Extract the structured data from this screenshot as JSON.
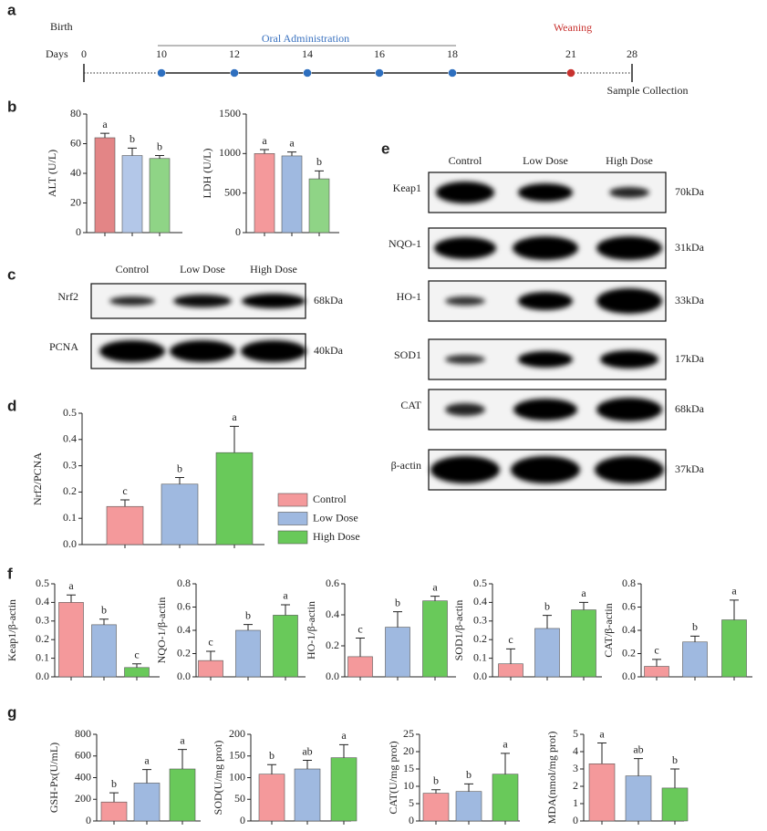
{
  "panels": {
    "a": "a",
    "b": "b",
    "c": "c",
    "d": "d",
    "e": "e",
    "f": "f",
    "g": "g"
  },
  "timeline": {
    "birth": "Birth",
    "days_label": "Days",
    "days": [
      0,
      10,
      12,
      14,
      16,
      18,
      21,
      28
    ],
    "administration": "Oral  Administration",
    "weaning": "Weaning",
    "collection": "Sample Collection"
  },
  "blot_c": {
    "lanes": [
      "Control",
      "Low Dose",
      "High Dose"
    ],
    "rows": [
      {
        "protein": "Nrf2",
        "size": "68kDa"
      },
      {
        "protein": "PCNA",
        "size": "40kDa"
      }
    ]
  },
  "blot_e": {
    "lanes": [
      "Control",
      "Low Dose",
      "High Dose"
    ],
    "rows": [
      {
        "protein": "Keap1",
        "size": "70kDa"
      },
      {
        "protein": "NQO-1",
        "size": "31kDa"
      },
      {
        "protein": "HO-1",
        "size": "33kDa"
      },
      {
        "protein": "SOD1",
        "size": "17kDa"
      },
      {
        "protein": "CAT",
        "size": "68kDa"
      },
      {
        "protein": "β-actin",
        "size": "37kDa"
      }
    ]
  },
  "chart_data": [
    {
      "type": "bar",
      "ylabel": "ALT (U/L)",
      "values": [
        64,
        52,
        50
      ],
      "errors": [
        3,
        5,
        2
      ],
      "annotations": [
        "a",
        "b",
        "b"
      ],
      "colors": [
        "#e38586",
        "#b3c7e8",
        "#8fd486"
      ],
      "ylim": [
        0,
        80
      ],
      "yticks": [
        0,
        20,
        40,
        60,
        80
      ]
    },
    {
      "type": "bar",
      "ylabel": "LDH (U/L)",
      "values": [
        1000,
        970,
        680
      ],
      "errors": [
        50,
        50,
        100
      ],
      "annotations": [
        "a",
        "a",
        "b"
      ],
      "colors": [
        "#f4999b",
        "#9fb9e0",
        "#8fd486"
      ],
      "ylim": [
        0,
        1500
      ],
      "yticks": [
        0,
        500,
        1000,
        1500
      ]
    },
    {
      "type": "bar",
      "ylabel": "Nrf2/PCNA",
      "categories": [
        "Control",
        "Low Dose",
        "High Dose"
      ],
      "legend": true,
      "values": [
        0.145,
        0.23,
        0.35
      ],
      "errors": [
        0.025,
        0.025,
        0.1
      ],
      "annotations": [
        "c",
        "b",
        "a"
      ],
      "colors": [
        "#f4999b",
        "#9fb9e0",
        "#69c95a"
      ],
      "ylim": [
        0,
        0.5
      ],
      "yticks": [
        {
          "value": 0,
          "label": "0.0"
        },
        0.1,
        0.2,
        0.3,
        0.4,
        0.5
      ]
    },
    {
      "type": "bar",
      "ylabel": "Keap1/β-actin",
      "values": [
        0.4,
        0.28,
        0.05
      ],
      "errors": [
        0.04,
        0.03,
        0.02
      ],
      "annotations": [
        "a",
        "b",
        "c"
      ],
      "colors": [
        "#f4999b",
        "#9fb9e0",
        "#69c95a"
      ],
      "ylim": [
        0,
        0.5
      ],
      "yticks": [
        {
          "value": 0,
          "label": "0.0"
        },
        0.1,
        0.2,
        0.3,
        0.4,
        0.5
      ]
    },
    {
      "type": "bar",
      "ylabel": "NQO-1/β-actin",
      "values": [
        0.14,
        0.4,
        0.53
      ],
      "errors": [
        0.08,
        0.05,
        0.09
      ],
      "annotations": [
        "c",
        "b",
        "a"
      ],
      "colors": [
        "#f4999b",
        "#9fb9e0",
        "#69c95a"
      ],
      "ylim": [
        0,
        0.8
      ],
      "yticks": [
        {
          "value": 0,
          "label": "0.0"
        },
        0.2,
        0.4,
        0.6,
        0.8
      ]
    },
    {
      "type": "bar",
      "ylabel": "HO-1/β-actin",
      "values": [
        0.13,
        0.32,
        0.49
      ],
      "errors": [
        0.12,
        0.1,
        0.03
      ],
      "annotations": [
        "c",
        "b",
        "a"
      ],
      "colors": [
        "#f4999b",
        "#9fb9e0",
        "#69c95a"
      ],
      "ylim": [
        0,
        0.6
      ],
      "yticks": [
        {
          "value": 0,
          "label": "0.0"
        },
        0.2,
        0.4,
        0.6
      ]
    },
    {
      "type": "bar",
      "ylabel": "SOD1/β-actin",
      "values": [
        0.07,
        0.26,
        0.36
      ],
      "errors": [
        0.08,
        0.07,
        0.04
      ],
      "annotations": [
        "c",
        "b",
        "a"
      ],
      "colors": [
        "#f4999b",
        "#9fb9e0",
        "#69c95a"
      ],
      "ylim": [
        0,
        0.5
      ],
      "yticks": [
        {
          "value": 0,
          "label": "0.0"
        },
        0.1,
        0.2,
        0.3,
        0.4,
        0.5
      ]
    },
    {
      "type": "bar",
      "ylabel": "CAT/β-actin",
      "values": [
        0.09,
        0.3,
        0.49
      ],
      "errors": [
        0.06,
        0.05,
        0.17
      ],
      "annotations": [
        "c",
        "b",
        "a"
      ],
      "colors": [
        "#f4999b",
        "#9fb9e0",
        "#69c95a"
      ],
      "ylim": [
        0,
        0.8
      ],
      "yticks": [
        {
          "value": 0,
          "label": "0.0"
        },
        0.2,
        0.4,
        0.6,
        0.8
      ]
    },
    {
      "type": "bar",
      "ylabel": "GSH-Px(U/mL)",
      "values": [
        175,
        350,
        480
      ],
      "errors": [
        85,
        125,
        180
      ],
      "annotations": [
        "b",
        "a",
        "a"
      ],
      "colors": [
        "#f4999b",
        "#9fb9e0",
        "#69c95a"
      ],
      "ylim": [
        0,
        800
      ],
      "yticks": [
        0,
        200,
        400,
        600,
        800
      ]
    },
    {
      "type": "bar",
      "ylabel": "SOD(U/mg prot)",
      "values": [
        108,
        120,
        146
      ],
      "errors": [
        22,
        20,
        30
      ],
      "annotations": [
        "b",
        "ab",
        "a"
      ],
      "colors": [
        "#f4999b",
        "#9fb9e0",
        "#69c95a"
      ],
      "ylim": [
        0,
        200
      ],
      "yticks": [
        0,
        50,
        100,
        150,
        200
      ]
    },
    {
      "type": "bar",
      "ylabel": "CAT(U/mg prot)",
      "values": [
        8,
        8.5,
        13.5
      ],
      "errors": [
        1,
        2.2,
        6
      ],
      "annotations": [
        "b",
        "b",
        "a"
      ],
      "colors": [
        "#f4999b",
        "#9fb9e0",
        "#69c95a"
      ],
      "ylim": [
        0,
        25
      ],
      "yticks": [
        0,
        5,
        10,
        15,
        20,
        25
      ]
    },
    {
      "type": "bar",
      "ylabel": "MDA(nmol/mg prot)",
      "values": [
        3.3,
        2.6,
        1.9
      ],
      "errors": [
        1.2,
        1,
        1.1
      ],
      "annotations": [
        "a",
        "ab",
        "b"
      ],
      "colors": [
        "#f4999b",
        "#9fb9e0",
        "#69c95a"
      ],
      "ylim": [
        0,
        5
      ],
      "yticks": [
        0,
        1,
        2,
        3,
        4,
        5
      ]
    }
  ]
}
